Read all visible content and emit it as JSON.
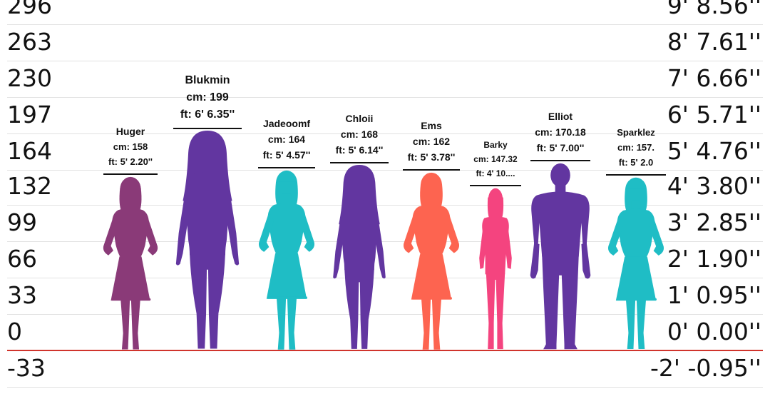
{
  "chart_data": {
    "type": "bar",
    "axis_unit": "cm",
    "y_range": [
      -33,
      296
    ],
    "left_ticks": [
      "296",
      "263",
      "230",
      "197",
      "164",
      "132",
      "99",
      "66",
      "33",
      "0",
      "-33"
    ],
    "right_ticks": [
      "9' 8.56''",
      "8' 7.61''",
      "7' 6.66''",
      "6' 5.71''",
      "5' 4.76''",
      "4' 3.80''",
      "3' 2.85''",
      "2' 1.90''",
      "1' 0.95''",
      "0' 0.00''",
      "-2' -0.95''"
    ],
    "people": [
      {
        "name": "Huger",
        "cm": 158,
        "cm_label": "cm: 158",
        "ft_label": "ft: 5' 2.20''",
        "color": "#8a3a78",
        "shape": "female-dress"
      },
      {
        "name": "Blukmin",
        "cm": 199,
        "cm_label": "cm: 199",
        "ft_label": "ft: 6' 6.35''",
        "color": "#6236a0",
        "shape": "female-long-hair"
      },
      {
        "name": "Jadeoomf",
        "cm": 164,
        "cm_label": "cm: 164",
        "ft_label": "ft: 5' 4.57''",
        "color": "#1fbdc5",
        "shape": "female-dress"
      },
      {
        "name": "Chloii",
        "cm": 168,
        "cm_label": "cm: 168",
        "ft_label": "ft: 5' 6.14''",
        "color": "#6236a0",
        "shape": "female-long-hair"
      },
      {
        "name": "Ems",
        "cm": 162,
        "cm_label": "cm: 162",
        "ft_label": "ft: 5' 3.78''",
        "color": "#fd6450",
        "shape": "female-dress"
      },
      {
        "name": "Barky",
        "cm": 147.32,
        "cm_label": "cm: 147.32",
        "ft_label": "ft: 4' 10....",
        "color": "#f4447f",
        "shape": "female-casual"
      },
      {
        "name": "Elliot",
        "cm": 170.18,
        "cm_label": "cm: 170.18",
        "ft_label": "ft: 5' 7.00''",
        "color": "#6236a0",
        "shape": "male"
      },
      {
        "name": "Sparklez",
        "cm": 157,
        "cm_label": "cm: 157.",
        "ft_label": "ft: 5' 2.0",
        "color": "#1fbdc5",
        "shape": "female-dress"
      }
    ]
  }
}
